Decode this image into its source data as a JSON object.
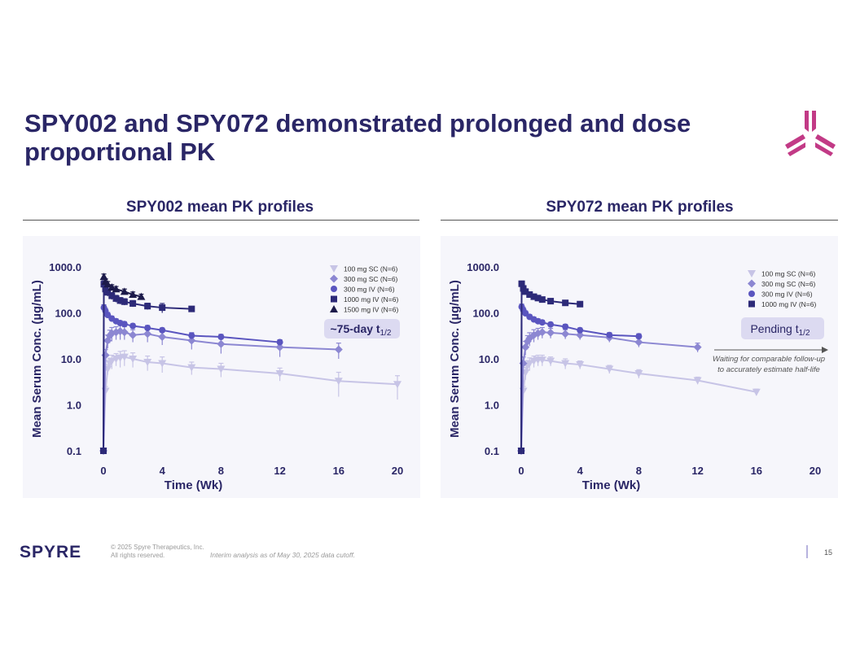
{
  "page": {
    "title": "SPY002 and SPY072 demonstrated prolonged and dose proportional PK",
    "left_section_title": "SPY002 mean PK profiles",
    "right_section_title": "SPY072 mean PK profiles"
  },
  "footer": {
    "brand": "SPYRE",
    "copyright_line1": "© 2025 Spyre Therapeutics, Inc.",
    "copyright_line2": "All rights reserved.",
    "note": "Interim analysis as of May 30, 2025 data cutoff.",
    "page_number": "15"
  },
  "colors": {
    "title": "#2a2666",
    "c100sc": "#c7c4e6",
    "c300sc": "#8c87d2",
    "c300iv": "#5a55bf",
    "c1000iv": "#2d2a78",
    "c1500iv": "#1c1a4a",
    "logo": "#c23a86"
  },
  "chart_data": [
    {
      "type": "line",
      "title": "SPY002 mean PK profiles",
      "xlabel": "Time (Wk)",
      "ylabel": "Mean Serum Conc. (µg/mL)",
      "yscale": "log",
      "xlim": [
        0,
        20
      ],
      "ylim": [
        0.1,
        1000
      ],
      "xticks": [
        0,
        4,
        8,
        12,
        16,
        20
      ],
      "yticks": [
        {
          "v": 1000,
          "label": "1000.0"
        },
        {
          "v": 100,
          "label": "100.0"
        },
        {
          "v": 10,
          "label": "10.0"
        },
        {
          "v": 1,
          "label": "1.0"
        },
        {
          "v": 0.1,
          "label": "0.1"
        }
      ],
      "annotation": {
        "text": "~75-day t",
        "sub": "1/2"
      },
      "legend_position": "top-right",
      "series": [
        {
          "name": "100 mg SC (N=6)",
          "color": "#c7c4e6",
          "marker": "tri-down",
          "points": [
            [
              0,
              0.1
            ],
            [
              0.14,
              2
            ],
            [
              0.29,
              6
            ],
            [
              0.43,
              8
            ],
            [
              0.57,
              9
            ],
            [
              0.86,
              10
            ],
            [
              1.14,
              10.5
            ],
            [
              1.43,
              11
            ],
            [
              2,
              10
            ],
            [
              3,
              8.5
            ],
            [
              4,
              8
            ],
            [
              6,
              6.5
            ],
            [
              8,
              6
            ],
            [
              12,
              4.8
            ],
            [
              16,
              3.3
            ],
            [
              20,
              2.8
            ]
          ],
          "err": [
            0,
            0.5,
            1.5,
            2,
            3,
            3,
            4,
            4,
            3.5,
            3,
            3,
            2,
            2,
            1.5,
            1.8,
            1.5
          ]
        },
        {
          "name": "300 mg SC (N=6)",
          "color": "#8c87d2",
          "marker": "diamond",
          "points": [
            [
              0,
              0.1
            ],
            [
              0.14,
              12
            ],
            [
              0.29,
              25
            ],
            [
              0.43,
              32
            ],
            [
              0.57,
              36
            ],
            [
              0.86,
              38
            ],
            [
              1.14,
              40
            ],
            [
              1.43,
              38
            ],
            [
              2,
              33
            ],
            [
              3,
              35
            ],
            [
              4,
              30
            ],
            [
              6,
              25
            ],
            [
              8,
              21
            ],
            [
              12,
              18
            ],
            [
              16,
              16
            ]
          ],
          "err": [
            0,
            4,
            8,
            10,
            12,
            12,
            14,
            12,
            10,
            12,
            10,
            9,
            8,
            7,
            6
          ]
        },
        {
          "name": "300 mg IV (N=6)",
          "color": "#5a55bf",
          "marker": "circle",
          "points": [
            [
              0,
              0.1
            ],
            [
              0.03,
              130
            ],
            [
              0.14,
              110
            ],
            [
              0.29,
              90
            ],
            [
              0.57,
              75
            ],
            [
              0.86,
              66
            ],
            [
              1.14,
              60
            ],
            [
              1.43,
              57
            ],
            [
              2,
              52
            ],
            [
              3,
              47
            ],
            [
              4,
              42
            ],
            [
              6,
              32
            ],
            [
              8,
              30
            ],
            [
              12,
              23
            ]
          ],
          "err": [
            0,
            20,
            15,
            12,
            10,
            8,
            7,
            7,
            6,
            6,
            5,
            5,
            4,
            3
          ]
        },
        {
          "name": "1000 mg IV (N=6)",
          "color": "#2d2a78",
          "marker": "square",
          "points": [
            [
              0,
              0.1
            ],
            [
              0.03,
              420
            ],
            [
              0.14,
              330
            ],
            [
              0.29,
              280
            ],
            [
              0.57,
              235
            ],
            [
              0.86,
              205
            ],
            [
              1.14,
              185
            ],
            [
              1.43,
              175
            ],
            [
              2,
              160
            ],
            [
              3,
              140
            ],
            [
              4,
              130
            ],
            [
              6,
              122
            ]
          ],
          "err": [
            0,
            80,
            60,
            50,
            40,
            35,
            30,
            28,
            25,
            22,
            30,
            15
          ]
        },
        {
          "name": "1500 mg IV (N=6)",
          "color": "#1c1a4a",
          "marker": "tri-up",
          "points": [
            [
              0.03,
              610
            ],
            [
              0.14,
              480
            ],
            [
              0.29,
              420
            ],
            [
              0.57,
              360
            ],
            [
              0.86,
              330
            ],
            [
              1.43,
              290
            ],
            [
              2,
              250
            ],
            [
              2.57,
              225
            ]
          ],
          "err": [
            90,
            70,
            60,
            50,
            45,
            40,
            35,
            30
          ]
        }
      ]
    },
    {
      "type": "line",
      "title": "SPY072 mean PK profiles",
      "xlabel": "Time (Wk)",
      "ylabel": "Mean Serum Conc. (µg/mL)",
      "yscale": "log",
      "xlim": [
        0,
        20
      ],
      "ylim": [
        0.1,
        1000
      ],
      "xticks": [
        0,
        4,
        8,
        12,
        16,
        20
      ],
      "yticks": [
        {
          "v": 1000,
          "label": "1000.0"
        },
        {
          "v": 100,
          "label": "100.0"
        },
        {
          "v": 10,
          "label": "10.0"
        },
        {
          "v": 1,
          "label": "1.0"
        },
        {
          "v": 0.1,
          "label": "0.1"
        }
      ],
      "annotation": {
        "text": "Pending t",
        "sub": "1/2"
      },
      "arrow_note_line1": "Waiting for comparable follow-up",
      "arrow_note_line2": "to accurately estimate half-life",
      "legend_position": "top-right",
      "series": [
        {
          "name": "100 mg SC (N=6)",
          "color": "#c7c4e6",
          "marker": "tri-down",
          "points": [
            [
              0,
              0.1
            ],
            [
              0.14,
              2
            ],
            [
              0.29,
              5
            ],
            [
              0.43,
              7
            ],
            [
              0.57,
              8
            ],
            [
              0.86,
              9
            ],
            [
              1.14,
              9.5
            ],
            [
              1.43,
              9.5
            ],
            [
              2,
              9
            ],
            [
              3,
              8
            ],
            [
              4,
              7.5
            ],
            [
              6,
              6
            ],
            [
              8,
              4.8
            ],
            [
              12,
              3.4
            ],
            [
              16,
              1.9
            ]
          ],
          "err": [
            0,
            0.5,
            1.5,
            2,
            2.5,
            2.5,
            2.5,
            2.5,
            2,
            2,
            1.5,
            1.2,
            1,
            0.6,
            0.3
          ]
        },
        {
          "name": "300 mg SC (N=6)",
          "color": "#8c87d2",
          "marker": "diamond",
          "points": [
            [
              0,
              0.1
            ],
            [
              0.14,
              8
            ],
            [
              0.29,
              18
            ],
            [
              0.43,
              24
            ],
            [
              0.57,
              28
            ],
            [
              0.86,
              33
            ],
            [
              1.14,
              36
            ],
            [
              1.43,
              38
            ],
            [
              2,
              37
            ],
            [
              3,
              35
            ],
            [
              4,
              33
            ],
            [
              6,
              29
            ],
            [
              8,
              23
            ],
            [
              12,
              18
            ]
          ],
          "err": [
            0,
            3,
            6,
            8,
            9,
            10,
            10,
            10,
            9,
            8,
            7,
            6,
            5,
            4
          ]
        },
        {
          "name": "300 mg IV (N=6)",
          "color": "#5a55bf",
          "marker": "circle",
          "points": [
            [
              0,
              0.1
            ],
            [
              0.03,
              135
            ],
            [
              0.14,
              115
            ],
            [
              0.29,
              98
            ],
            [
              0.57,
              82
            ],
            [
              0.86,
              72
            ],
            [
              1.14,
              66
            ],
            [
              1.43,
              62
            ],
            [
              2,
              56
            ],
            [
              3,
              50
            ],
            [
              4,
              42
            ],
            [
              6,
              33
            ],
            [
              8,
              31
            ]
          ],
          "err": [
            0,
            20,
            15,
            12,
            10,
            9,
            8,
            7,
            6,
            6,
            5,
            4,
            4
          ]
        },
        {
          "name": "1000 mg IV (N=6)",
          "color": "#2d2a78",
          "marker": "square",
          "points": [
            [
              0,
              0.1
            ],
            [
              0.03,
              430
            ],
            [
              0.14,
              340
            ],
            [
              0.29,
              290
            ],
            [
              0.57,
              250
            ],
            [
              0.86,
              225
            ],
            [
              1.14,
              210
            ],
            [
              1.43,
              195
            ],
            [
              2,
              180
            ],
            [
              3,
              165
            ],
            [
              4,
              155
            ]
          ],
          "err": [
            0,
            60,
            45,
            40,
            35,
            30,
            28,
            25,
            22,
            20,
            18
          ]
        }
      ]
    }
  ]
}
